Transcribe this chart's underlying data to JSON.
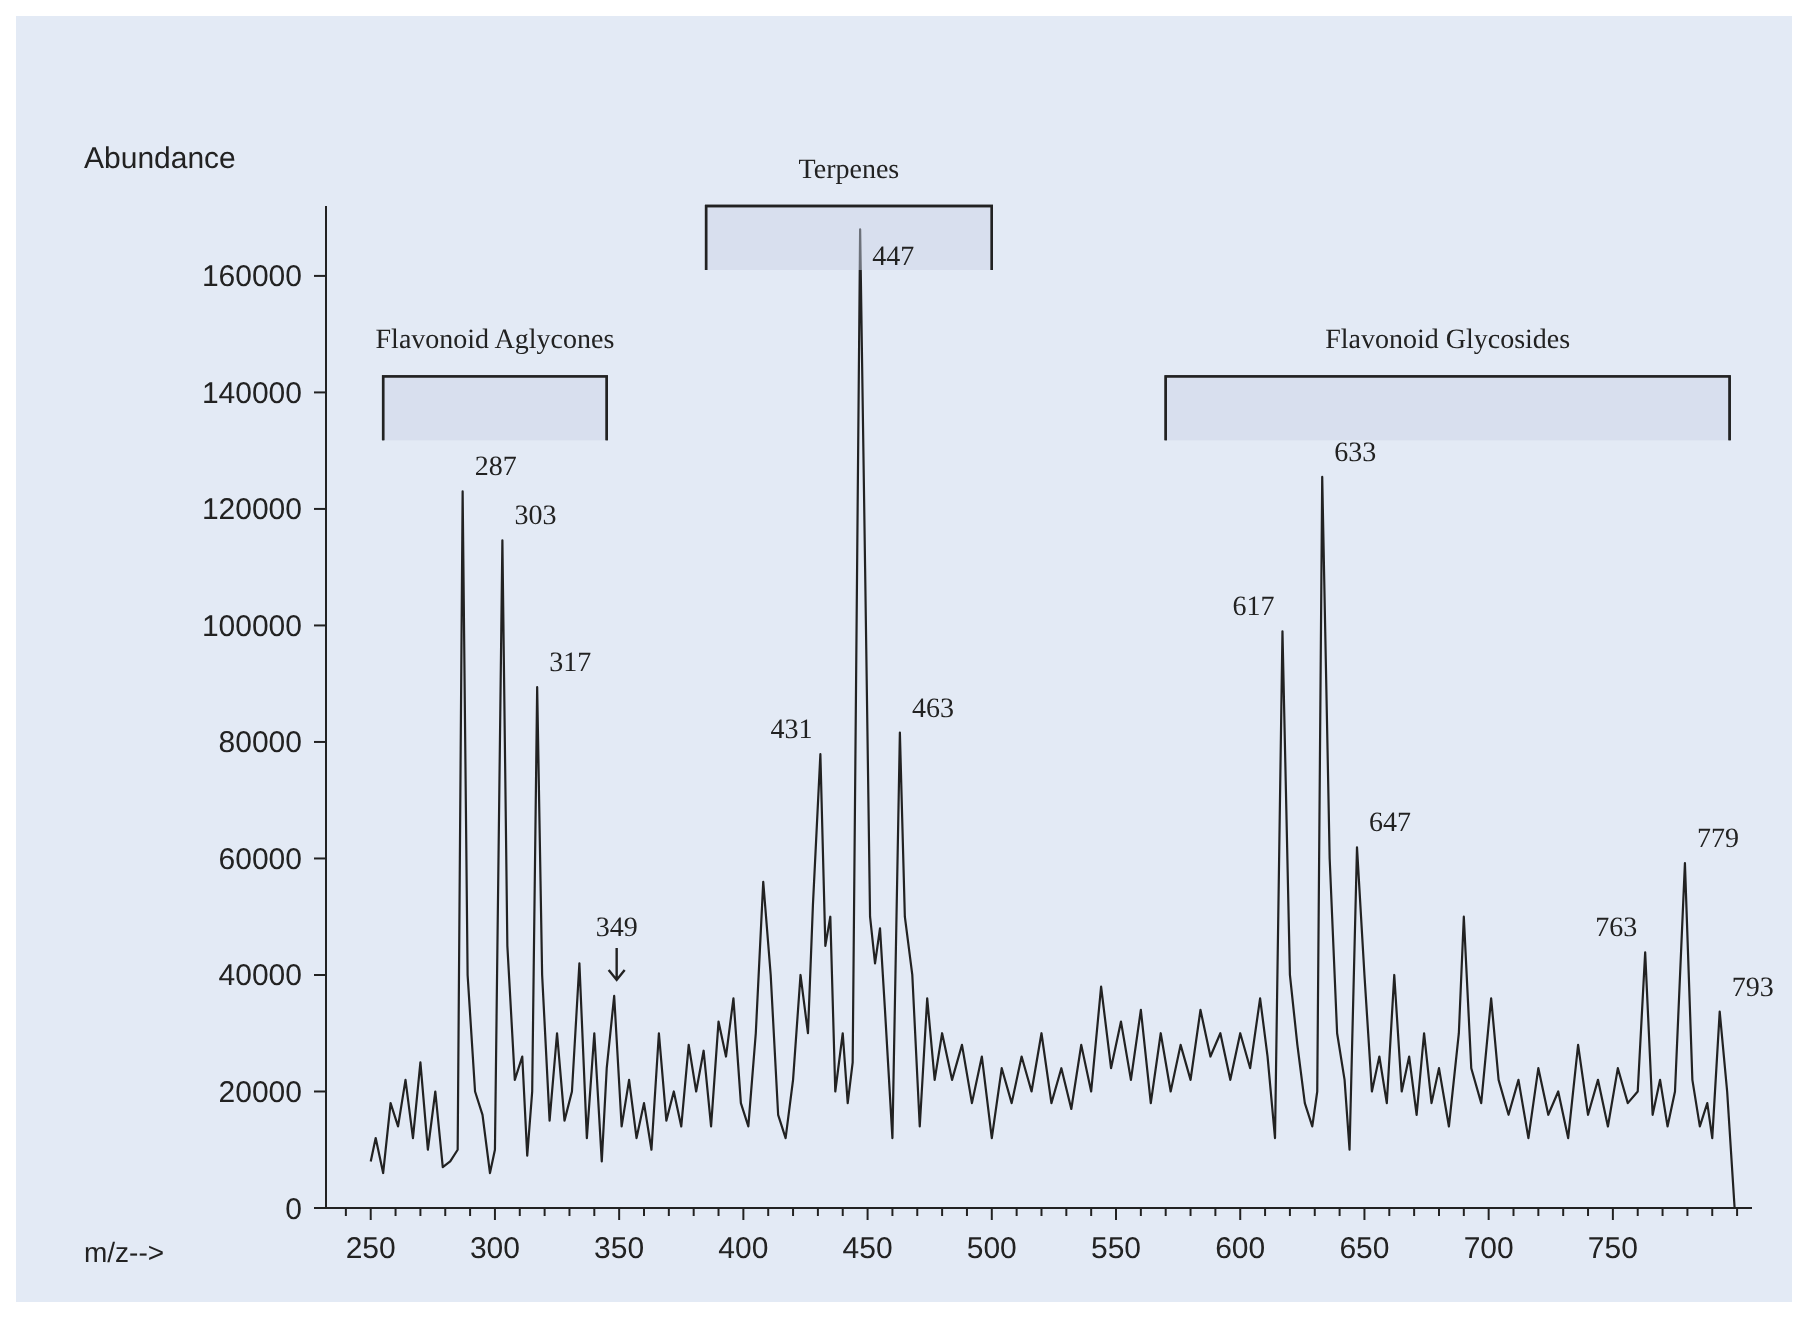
{
  "chart_data": {
    "type": "line",
    "xlabel": "m/z-->",
    "ylabel": "Abundance",
    "xlim": [
      232,
      806
    ],
    "ylim": [
      0,
      172000
    ],
    "xticks": [
      {
        "value": 240,
        "label": null
      },
      {
        "value": 250,
        "label": "250"
      },
      {
        "value": 260,
        "label": null
      },
      {
        "value": 270,
        "label": null
      },
      {
        "value": 280,
        "label": null
      },
      {
        "value": 290,
        "label": null
      },
      {
        "value": 300,
        "label": "300"
      },
      {
        "value": 310,
        "label": null
      },
      {
        "value": 320,
        "label": null
      },
      {
        "value": 330,
        "label": null
      },
      {
        "value": 340,
        "label": null
      },
      {
        "value": 350,
        "label": "350"
      },
      {
        "value": 360,
        "label": null
      },
      {
        "value": 370,
        "label": null
      },
      {
        "value": 380,
        "label": null
      },
      {
        "value": 390,
        "label": null
      },
      {
        "value": 400,
        "label": "400"
      },
      {
        "value": 410,
        "label": null
      },
      {
        "value": 420,
        "label": null
      },
      {
        "value": 430,
        "label": null
      },
      {
        "value": 440,
        "label": null
      },
      {
        "value": 450,
        "label": "450"
      },
      {
        "value": 460,
        "label": null
      },
      {
        "value": 470,
        "label": null
      },
      {
        "value": 480,
        "label": null
      },
      {
        "value": 490,
        "label": null
      },
      {
        "value": 500,
        "label": "500"
      },
      {
        "value": 510,
        "label": null
      },
      {
        "value": 520,
        "label": null
      },
      {
        "value": 530,
        "label": null
      },
      {
        "value": 540,
        "label": null
      },
      {
        "value": 550,
        "label": "550"
      },
      {
        "value": 560,
        "label": null
      },
      {
        "value": 570,
        "label": null
      },
      {
        "value": 580,
        "label": null
      },
      {
        "value": 590,
        "label": null
      },
      {
        "value": 600,
        "label": "600"
      },
      {
        "value": 610,
        "label": null
      },
      {
        "value": 620,
        "label": null
      },
      {
        "value": 630,
        "label": null
      },
      {
        "value": 640,
        "label": null
      },
      {
        "value": 650,
        "label": "650"
      },
      {
        "value": 660,
        "label": null
      },
      {
        "value": 670,
        "label": null
      },
      {
        "value": 680,
        "label": null
      },
      {
        "value": 690,
        "label": null
      },
      {
        "value": 700,
        "label": "700"
      },
      {
        "value": 710,
        "label": null
      },
      {
        "value": 720,
        "label": null
      },
      {
        "value": 730,
        "label": null
      },
      {
        "value": 740,
        "label": null
      },
      {
        "value": 750,
        "label": "750"
      },
      {
        "value": 760,
        "label": null
      },
      {
        "value": 770,
        "label": null
      },
      {
        "value": 780,
        "label": null
      },
      {
        "value": 790,
        "label": null
      },
      {
        "value": 800,
        "label": null
      }
    ],
    "yticks": [
      0,
      20000,
      40000,
      60000,
      80000,
      100000,
      120000,
      140000,
      160000
    ],
    "series": [
      {
        "color": "#222222",
        "x": [
          250,
          252,
          255,
          258,
          261,
          264,
          267,
          270,
          273,
          276,
          279,
          282,
          285,
          287,
          289,
          292,
          295,
          298,
          300,
          303,
          305,
          308,
          311,
          313,
          315,
          317,
          319,
          322,
          325,
          328,
          331,
          334,
          337,
          340,
          343,
          345,
          348,
          351,
          354,
          357,
          360,
          363,
          366,
          369,
          372,
          375,
          378,
          381,
          384,
          387,
          390,
          393,
          396,
          399,
          402,
          405,
          408,
          411,
          414,
          417,
          420,
          423,
          426,
          428,
          431,
          433,
          435,
          437,
          440,
          442,
          444,
          447,
          449,
          451,
          453,
          455,
          457,
          460,
          463,
          465,
          468,
          471,
          474,
          477,
          480,
          484,
          488,
          492,
          496,
          500,
          504,
          508,
          512,
          516,
          520,
          524,
          528,
          532,
          536,
          540,
          544,
          548,
          552,
          556,
          560,
          564,
          568,
          572,
          576,
          580,
          584,
          588,
          592,
          596,
          600,
          604,
          608,
          611,
          614,
          617,
          620,
          623,
          626,
          629,
          631,
          633,
          636,
          639,
          642,
          644,
          647,
          650,
          653,
          656,
          659,
          662,
          665,
          668,
          671,
          674,
          677,
          680,
          684,
          688,
          690,
          693,
          697,
          701,
          704,
          708,
          712,
          716,
          720,
          724,
          728,
          732,
          736,
          740,
          744,
          748,
          752,
          756,
          760,
          763,
          766,
          769,
          772,
          775,
          779,
          782,
          785,
          788,
          790,
          793,
          796,
          799
        ],
        "values": [
          8000,
          12000,
          6000,
          18000,
          14000,
          22000,
          12000,
          25000,
          10000,
          20000,
          7000,
          8000,
          10000,
          123000,
          40000,
          20000,
          16000,
          6000,
          10000,
          114600,
          45000,
          22000,
          26000,
          9000,
          20000,
          89400,
          40000,
          15000,
          30000,
          15000,
          20000,
          42000,
          12000,
          30000,
          8000,
          24000,
          36400,
          14000,
          22000,
          12000,
          18000,
          10000,
          30000,
          15000,
          20000,
          14000,
          28000,
          20000,
          27000,
          14000,
          32000,
          26000,
          36000,
          18000,
          14000,
          30000,
          56000,
          40000,
          16000,
          12000,
          22000,
          40000,
          30000,
          52000,
          77900,
          45000,
          50000,
          20000,
          30000,
          18000,
          25000,
          168000,
          110000,
          50000,
          42000,
          48000,
          34000,
          12000,
          81600,
          50000,
          40000,
          14000,
          36000,
          22000,
          30000,
          22000,
          28000,
          18000,
          26000,
          12000,
          24000,
          18000,
          26000,
          20000,
          30000,
          18000,
          24000,
          17000,
          28000,
          20000,
          38000,
          24000,
          32000,
          22000,
          34000,
          18000,
          30000,
          20000,
          28000,
          22000,
          34000,
          26000,
          30000,
          22000,
          30000,
          24000,
          36000,
          26000,
          12000,
          99000,
          40000,
          28000,
          18000,
          14000,
          20000,
          125500,
          60000,
          30000,
          22000,
          10000,
          61900,
          40000,
          20000,
          26000,
          18000,
          40000,
          20000,
          26000,
          16000,
          30000,
          18000,
          24000,
          14000,
          30000,
          50000,
          24000,
          18000,
          36000,
          22000,
          16000,
          22000,
          12000,
          24000,
          16000,
          20000,
          12000,
          28000,
          16000,
          22000,
          14000,
          24000,
          18000,
          20000,
          43900,
          16000,
          22000,
          14000,
          20000,
          59200,
          22000,
          14000,
          18000,
          12000,
          33700,
          20000,
          0
        ]
      }
    ],
    "bands": [
      {
        "axis": "x",
        "from": 255,
        "to": 345,
        "label": "Flavonoid Aglycones"
      },
      {
        "axis": "x",
        "from": 385,
        "to": 500,
        "label": "Terpenes"
      },
      {
        "axis": "x",
        "from": 570,
        "to": 797,
        "label": "Flavonoid Glycosides"
      }
    ],
    "annotations": [
      {
        "text": "287",
        "x": 287,
        "y": 123000
      },
      {
        "text": "303",
        "x": 303,
        "y": 114600
      },
      {
        "text": "317",
        "x": 317,
        "y": 89400
      },
      {
        "text": "349",
        "x": 349,
        "y": 36400
      },
      {
        "text": "431",
        "x": 431,
        "y": 77900
      },
      {
        "text": "447",
        "x": 447,
        "y": 168000
      },
      {
        "text": "463",
        "x": 463,
        "y": 81600
      },
      {
        "text": "617",
        "x": 617,
        "y": 99000
      },
      {
        "text": "633",
        "x": 633,
        "y": 125500
      },
      {
        "text": "647",
        "x": 647,
        "y": 61900
      },
      {
        "text": "763",
        "x": 763,
        "y": 43900
      },
      {
        "text": "779",
        "x": 779,
        "y": 59200
      },
      {
        "text": "793",
        "x": 793,
        "y": 33700
      }
    ]
  }
}
